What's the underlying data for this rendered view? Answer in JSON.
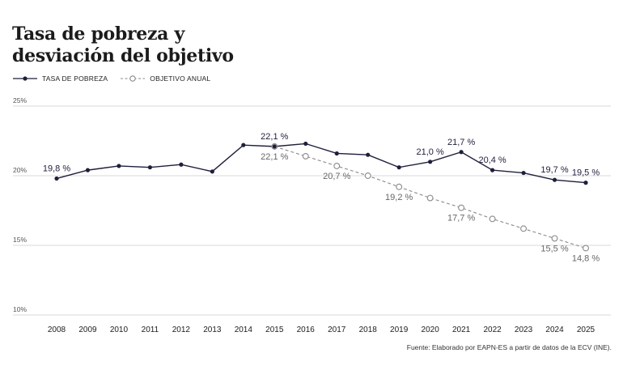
{
  "title_lines": [
    "Tasa de pobreza y",
    "desviación del objetivo"
  ],
  "legend": {
    "series1": "TASA DE POBREZA",
    "series2": "OBJETIVO ANUAL"
  },
  "source": "Fuente: Elaborado por EAPN-ES a partir de datos de la ECV (INE).",
  "colors": {
    "main": "#1e1f3b",
    "target": "#8a8a8a",
    "grid": "#d9d9d9"
  },
  "chart_data": {
    "type": "line",
    "title": "Tasa de pobreza y desviación del objetivo",
    "xlabel": "",
    "ylabel": "",
    "ylim": [
      10,
      25
    ],
    "y_ticks": [
      {
        "value": 10,
        "label": "10%"
      },
      {
        "value": 15,
        "label": "15%"
      },
      {
        "value": 20,
        "label": "20%"
      },
      {
        "value": 25,
        "label": "25%"
      }
    ],
    "grid": true,
    "legend_position": "top-left",
    "x": [
      "2008",
      "2009",
      "2010",
      "2011",
      "2012",
      "2013",
      "2014",
      "2015",
      "2016",
      "2017",
      "2018",
      "2019",
      "2020",
      "2021",
      "2022",
      "2023",
      "2024",
      "2025"
    ],
    "series": [
      {
        "name": "TASA DE POBREZA",
        "style": "solid-filled-markers",
        "values": [
          19.8,
          20.4,
          20.7,
          20.6,
          20.8,
          20.3,
          22.2,
          22.1,
          22.3,
          21.6,
          21.5,
          20.6,
          21.0,
          21.7,
          20.4,
          20.2,
          19.7,
          19.5
        ]
      },
      {
        "name": "OBJETIVO ANUAL",
        "style": "dashed-hollow-markers",
        "x": [
          "2015",
          "2016",
          "2017",
          "2018",
          "2019",
          "2020",
          "2021",
          "2022",
          "2023",
          "2024",
          "2025"
        ],
        "values": [
          22.1,
          21.4,
          20.7,
          20.0,
          19.2,
          18.4,
          17.7,
          16.9,
          16.2,
          15.5,
          14.8
        ]
      }
    ],
    "annotations": {
      "main": [
        {
          "x": "2008",
          "label": "19,8 %"
        },
        {
          "x": "2015",
          "label": "22,1 %"
        },
        {
          "x": "2020",
          "label": "21,0 %"
        },
        {
          "x": "2021",
          "label": "21,7 %"
        },
        {
          "x": "2022",
          "label": "20,4 %"
        },
        {
          "x": "2024",
          "label": "19,7 %"
        },
        {
          "x": "2025",
          "label": "19,5 %"
        }
      ],
      "target": [
        {
          "x": "2015",
          "label": "22,1 %"
        },
        {
          "x": "2017",
          "label": "20,7 %"
        },
        {
          "x": "2019",
          "label": "19,2 %"
        },
        {
          "x": "2021",
          "label": "17,7 %"
        },
        {
          "x": "2024",
          "label": "15,5 %"
        },
        {
          "x": "2025",
          "label": "14,8 %"
        }
      ]
    }
  }
}
